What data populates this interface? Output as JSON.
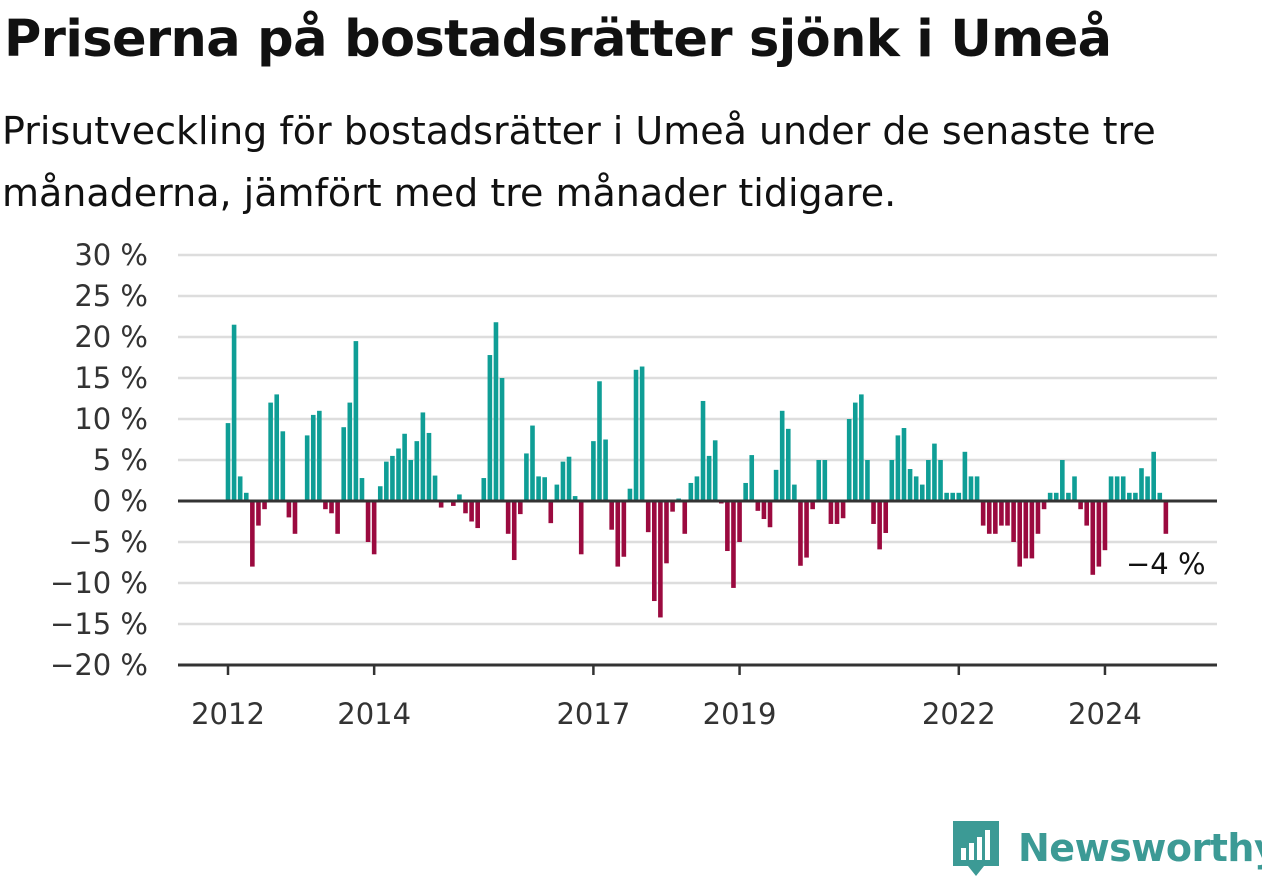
{
  "title": "Priserna på bostadsrätter sjönk i Umeå",
  "subtitle": "Prisutveckling för bostadsrätter i Umeå under de senaste tre månaderna, jämfört med tre månader tidigare.",
  "brand": "Newsworthy",
  "colors": {
    "positive": "#0f9e96",
    "negative": "#9b0a3f",
    "grid": "#dddddd",
    "axis": "#333333",
    "brand": "#3c9a95"
  },
  "chart_data": {
    "type": "bar",
    "ylim": [
      -20,
      30
    ],
    "yticks": [
      30,
      25,
      20,
      15,
      10,
      5,
      0,
      -5,
      -10,
      -15,
      -20
    ],
    "ytick_labels": [
      "30 %",
      "25 %",
      "20 %",
      "15 %",
      "10 %",
      "5 %",
      "0 %",
      "−5 %",
      "−10 %",
      "−15 %",
      "−20 %"
    ],
    "xtick_labels": [
      "2012",
      "2014",
      "2017",
      "2019",
      "2022",
      "2024"
    ],
    "xtick_month_index": [
      0,
      24,
      60,
      84,
      120,
      144
    ],
    "x_start": "2012-01",
    "x_end": "2024-10",
    "grid": true,
    "annotation": "−4 %",
    "values": [
      9.5,
      21.5,
      3,
      1,
      -8,
      -3,
      -1,
      12,
      13,
      8.5,
      -2,
      -4,
      0,
      8,
      10.5,
      11,
      -1,
      -1.5,
      -4,
      9,
      12,
      19.5,
      2.8,
      -5,
      -6.5,
      1.8,
      4.8,
      5.5,
      6.4,
      8.2,
      5,
      7.3,
      10.8,
      8.3,
      3.1,
      -0.8,
      0,
      -0.6,
      0.8,
      -1.5,
      -2.5,
      -3.3,
      2.8,
      17.8,
      21.8,
      15,
      -4,
      -7.2,
      -1.6,
      5.8,
      9.2,
      3,
      2.9,
      -2.7,
      2,
      4.8,
      5.4,
      0.6,
      -6.5,
      0,
      7.3,
      14.6,
      7.5,
      -3.5,
      -8,
      -6.8,
      1.5,
      16,
      16.4,
      -3.8,
      -12.2,
      -14.2,
      -7.6,
      -1.3,
      0.3,
      -4,
      2.2,
      3,
      12.2,
      5.5,
      7.4,
      -0.3,
      -6.1,
      -10.6,
      -5,
      2.2,
      5.6,
      -1.2,
      -2.2,
      -3.2,
      3.8,
      11,
      8.8,
      2,
      -7.9,
      -6.9,
      -1,
      5,
      5,
      -2.8,
      -2.8,
      -2.1,
      10,
      12,
      13,
      5,
      -2.8,
      -5.9,
      -3.9,
      5,
      8,
      8.9,
      3.9,
      3,
      2,
      5,
      7,
      5,
      1,
      1,
      1,
      6,
      3,
      3,
      -3,
      -4,
      -4,
      -3,
      -3,
      -5,
      -8,
      -7,
      -7,
      -4,
      -1,
      1,
      1,
      5,
      1,
      3,
      -1,
      -3,
      -9,
      -8,
      -6,
      3,
      3,
      3,
      1,
      1,
      4,
      3,
      6,
      1,
      -4
    ]
  }
}
